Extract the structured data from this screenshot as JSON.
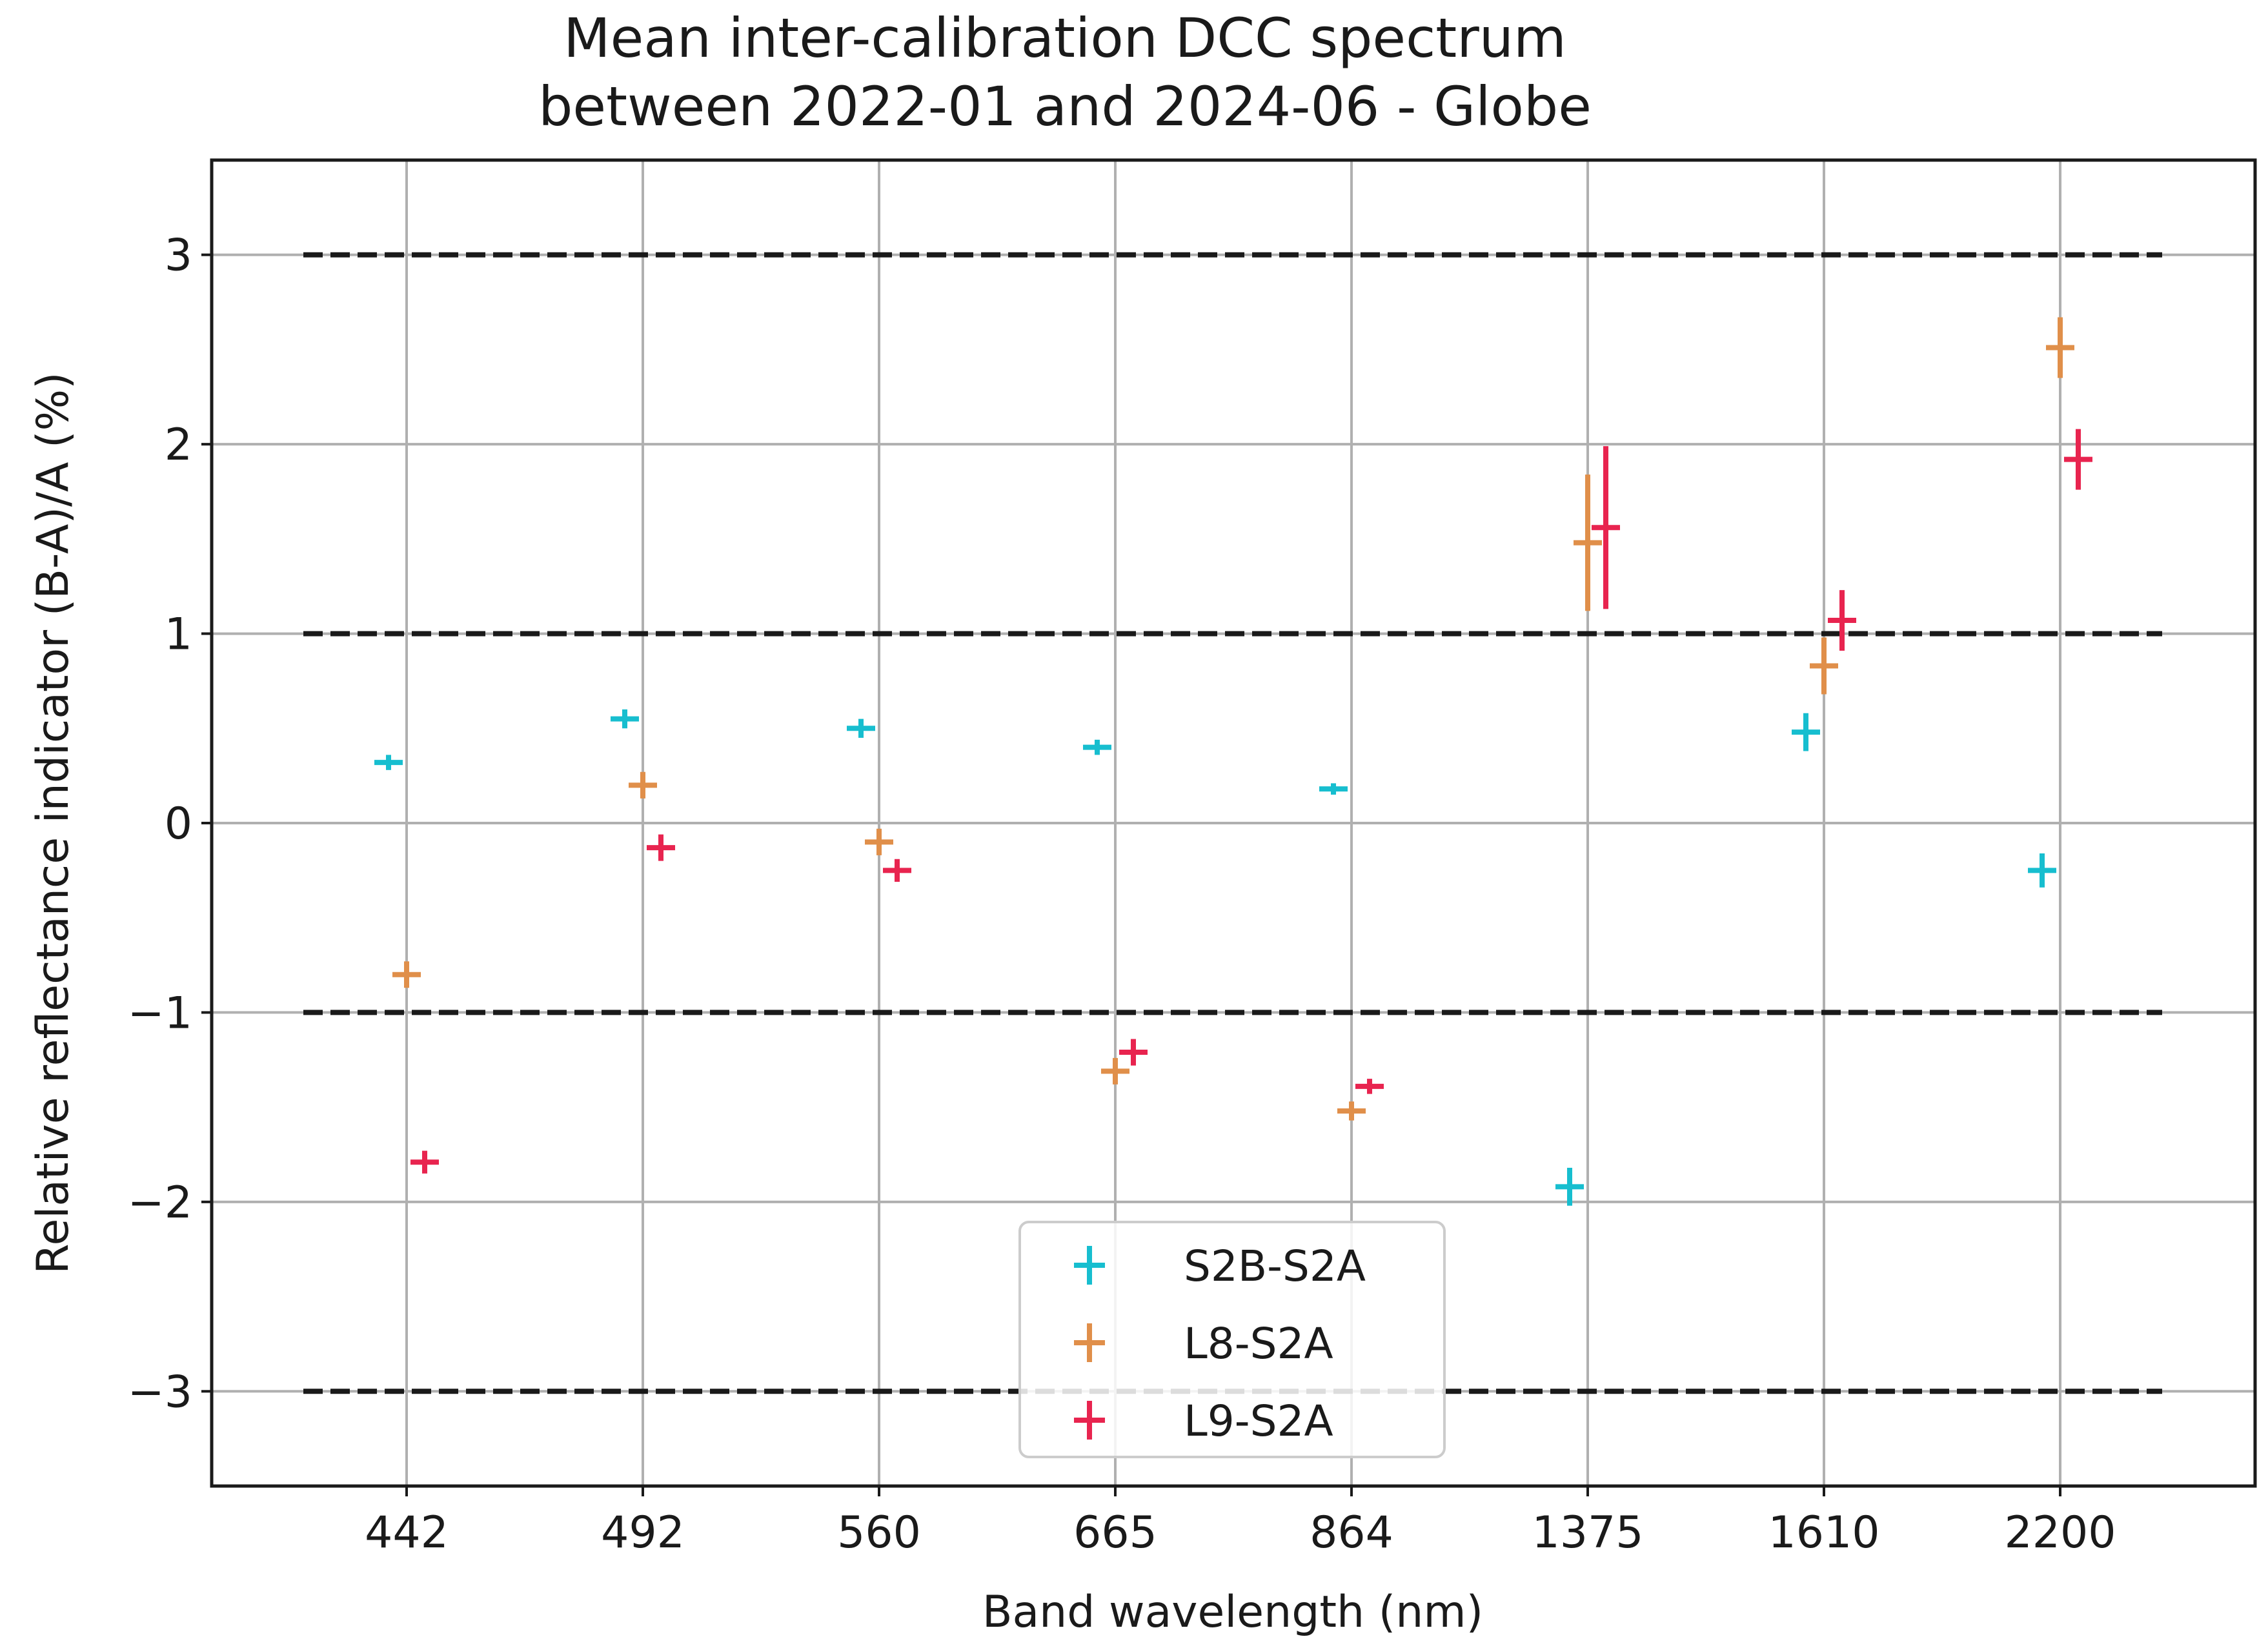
{
  "chart_data": {
    "type": "scatter",
    "title_lines": [
      "Mean inter-calibration DCC spectrum",
      "between 2022-01 and 2024-06 - Globe"
    ],
    "xlabel": "Band wavelength (nm)",
    "ylabel": "Relative reflectance indicator (B-A)/A (%)",
    "categories": [
      "442",
      "492",
      "560",
      "665",
      "864",
      "1375",
      "1610",
      "2200"
    ],
    "ylim": [
      -3.5,
      3.5
    ],
    "yticks": [
      -3,
      -2,
      -1,
      0,
      1,
      2,
      3
    ],
    "ytick_labels": [
      "−3",
      "−2",
      "−1",
      "0",
      "1",
      "2",
      "3"
    ],
    "grid": true,
    "threshold_lines": [
      -3,
      -1,
      1,
      3
    ],
    "legend_position": "bottom-center",
    "series": [
      {
        "name": "S2B-S2A",
        "color": "#17becf",
        "points": [
          {
            "band": "442",
            "y": 0.32,
            "err": 0.04
          },
          {
            "band": "492",
            "y": 0.55,
            "err": 0.05
          },
          {
            "band": "560",
            "y": 0.5,
            "err": 0.05
          },
          {
            "band": "665",
            "y": 0.4,
            "err": 0.04
          },
          {
            "band": "864",
            "y": 0.18,
            "err": 0.03
          },
          {
            "band": "1375",
            "y": -1.92,
            "err": 0.1
          },
          {
            "band": "1610",
            "y": 0.48,
            "err": 0.1
          },
          {
            "band": "2200",
            "y": -0.25,
            "err": 0.09
          }
        ]
      },
      {
        "name": "L8-S2A",
        "color": "#e08f4a",
        "points": [
          {
            "band": "442",
            "y": -0.8,
            "err": 0.07
          },
          {
            "band": "492",
            "y": 0.2,
            "err": 0.07
          },
          {
            "band": "560",
            "y": -0.1,
            "err": 0.07
          },
          {
            "band": "665",
            "y": -1.31,
            "err": 0.07
          },
          {
            "band": "864",
            "y": -1.52,
            "err": 0.05
          },
          {
            "band": "1375",
            "y": 1.48,
            "err": 0.36
          },
          {
            "band": "1610",
            "y": 0.83,
            "err": 0.15
          },
          {
            "band": "2200",
            "y": 2.51,
            "err": 0.16
          }
        ]
      },
      {
        "name": "L9-S2A",
        "color": "#e8244f",
        "points": [
          {
            "band": "442",
            "y": -1.79,
            "err": 0.06
          },
          {
            "band": "492",
            "y": -0.13,
            "err": 0.07
          },
          {
            "band": "560",
            "y": -0.25,
            "err": 0.06
          },
          {
            "band": "665",
            "y": -1.21,
            "err": 0.07
          },
          {
            "band": "864",
            "y": -1.39,
            "err": 0.04
          },
          {
            "band": "1375",
            "y": 1.56,
            "err": 0.43
          },
          {
            "band": "1610",
            "y": 1.07,
            "err": 0.16
          },
          {
            "band": "2200",
            "y": 1.92,
            "err": 0.16
          }
        ]
      }
    ]
  }
}
